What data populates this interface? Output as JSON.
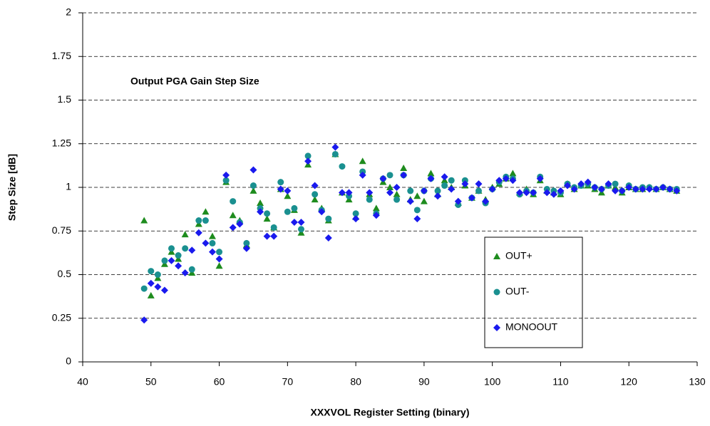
{
  "chart_data": {
    "type": "scatter",
    "annotation": "Output PGA Gain Step Size",
    "xlabel": "XXXVOL Register Setting (binary)",
    "ylabel": "Step Size [dB]",
    "x": [
      49,
      50,
      51,
      52,
      53,
      54,
      55,
      56,
      57,
      58,
      59,
      60,
      61,
      62,
      63,
      64,
      65,
      66,
      67,
      68,
      69,
      70,
      71,
      72,
      73,
      74,
      75,
      76,
      77,
      78,
      79,
      80,
      81,
      82,
      83,
      84,
      85,
      86,
      87,
      88,
      89,
      90,
      91,
      92,
      93,
      94,
      95,
      96,
      97,
      98,
      99,
      100,
      101,
      102,
      103,
      104,
      105,
      106,
      107,
      108,
      109,
      110,
      111,
      112,
      113,
      114,
      115,
      116,
      117,
      118,
      119,
      120,
      121,
      122,
      123,
      124,
      125,
      126,
      127
    ],
    "series": [
      {
        "name": "OUT+",
        "color": "#1e8c1e",
        "marker": "triangle",
        "values": [
          0.81,
          0.38,
          0.48,
          0.56,
          0.63,
          0.59,
          0.73,
          0.51,
          0.79,
          0.86,
          0.72,
          0.55,
          1.03,
          0.84,
          0.81,
          0.67,
          0.98,
          0.91,
          0.82,
          0.77,
          0.99,
          0.95,
          0.87,
          0.74,
          1.13,
          0.93,
          0.88,
          0.81,
          1.19,
          0.97,
          0.93,
          0.83,
          1.15,
          0.96,
          0.88,
          1.03,
          1.0,
          0.96,
          1.11,
          0.93,
          0.95,
          0.92,
          1.08,
          0.96,
          1.04,
          1.0,
          0.91,
          1.01,
          0.94,
          0.98,
          0.93,
          1.0,
          1.02,
          1.05,
          1.08,
          0.97,
          0.99,
          0.96,
          1.04,
          0.98,
          0.97,
          0.96,
          1.02,
          0.99,
          1.01,
          1.01,
          0.99,
          0.97,
          1.01,
          1.0,
          0.97,
          1.0,
          0.99,
          0.99,
          1.0,
          0.99,
          1.0,
          0.99,
          0.98
        ]
      },
      {
        "name": "OUT-",
        "color": "#1a9090",
        "marker": "circle",
        "values": [
          0.42,
          0.52,
          0.5,
          0.58,
          0.65,
          0.61,
          0.65,
          0.53,
          0.81,
          0.81,
          0.68,
          0.63,
          1.04,
          0.92,
          0.8,
          0.68,
          1.01,
          0.88,
          0.85,
          0.77,
          1.03,
          0.86,
          0.88,
          0.76,
          1.18,
          0.96,
          0.87,
          0.82,
          1.19,
          1.12,
          0.95,
          0.85,
          1.09,
          0.93,
          0.85,
          1.05,
          1.07,
          0.93,
          1.07,
          0.98,
          0.87,
          0.98,
          1.05,
          0.98,
          1.01,
          1.04,
          0.9,
          1.04,
          0.94,
          0.98,
          0.91,
          0.99,
          1.03,
          1.06,
          1.05,
          0.96,
          0.98,
          0.97,
          1.06,
          0.99,
          0.98,
          0.97,
          1.02,
          1.0,
          1.01,
          1.02,
          1.0,
          0.99,
          1.01,
          1.02,
          0.98,
          1.01,
          0.99,
          1.0,
          1.0,
          0.99,
          1.0,
          0.99,
          0.99
        ]
      },
      {
        "name": "MONOOUT",
        "color": "#1a1aee",
        "marker": "diamond",
        "values": [
          0.24,
          0.45,
          0.43,
          0.41,
          0.58,
          0.55,
          0.51,
          0.64,
          0.74,
          0.68,
          0.63,
          0.59,
          1.07,
          0.77,
          0.79,
          0.65,
          1.1,
          0.86,
          0.72,
          0.72,
          0.99,
          0.98,
          0.8,
          0.8,
          1.15,
          1.01,
          0.86,
          0.71,
          1.23,
          0.97,
          0.97,
          0.82,
          1.07,
          0.97,
          0.84,
          1.05,
          0.97,
          1.0,
          1.07,
          0.92,
          0.82,
          0.98,
          1.05,
          0.95,
          1.06,
          0.99,
          0.92,
          1.02,
          0.94,
          1.02,
          0.92,
          0.99,
          1.04,
          1.05,
          1.04,
          0.97,
          0.97,
          0.97,
          1.05,
          0.97,
          0.96,
          0.98,
          1.01,
          0.99,
          1.02,
          1.03,
          1.0,
          0.99,
          1.02,
          0.98,
          0.98,
          1.0,
          0.99,
          0.99,
          0.99,
          0.99,
          1.0,
          0.99,
          0.98
        ]
      }
    ],
    "xlim": [
      40,
      130
    ],
    "xticks": [
      40,
      50,
      60,
      70,
      80,
      90,
      100,
      110,
      120,
      130
    ],
    "ylim": [
      0,
      2
    ],
    "yticks": [
      0,
      0.25,
      0.5,
      0.75,
      1,
      1.25,
      1.5,
      1.75,
      2
    ],
    "grid": true,
    "legend": "lower right"
  }
}
